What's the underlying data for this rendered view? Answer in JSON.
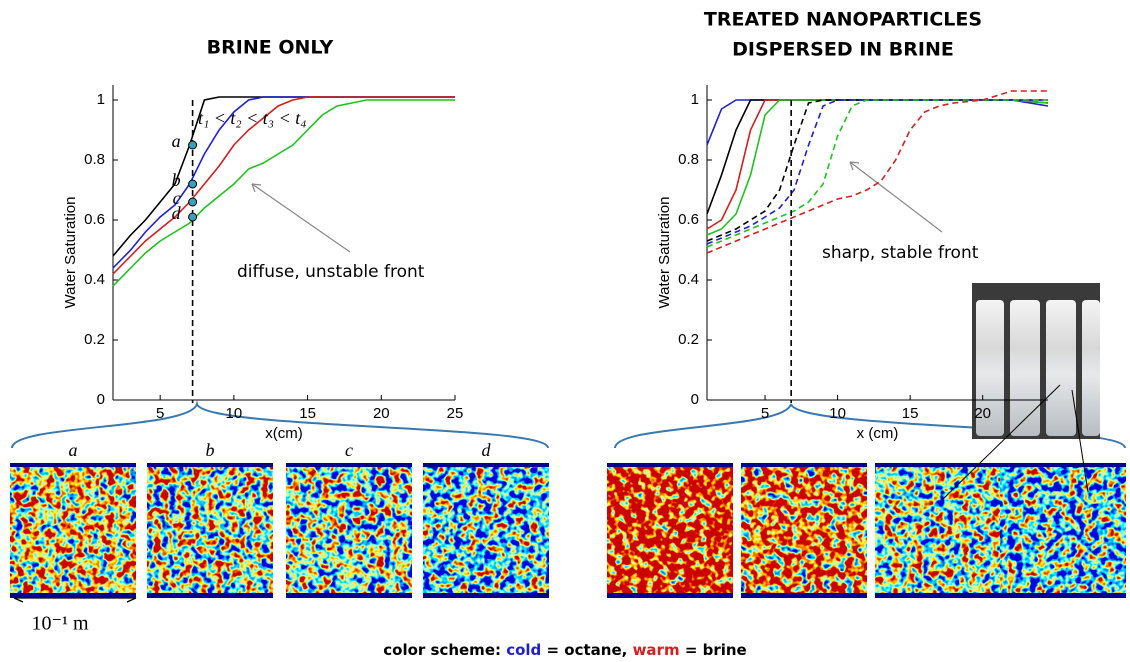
{
  "chart_data": [
    {
      "type": "line",
      "title": "BRINE ONLY",
      "ylabel": "Water Saturation",
      "xlabel": "x(cm)",
      "xlim": [
        1.8,
        25
      ],
      "ylim": [
        0,
        1.05
      ],
      "xticks": [
        5,
        10,
        15,
        20,
        25
      ],
      "yticks": [
        0,
        0.2,
        0.4,
        0.6,
        0.8,
        1
      ],
      "x": [
        1.8,
        3,
        4,
        5,
        6,
        7,
        8,
        9,
        10,
        11,
        12,
        13,
        14,
        15,
        16,
        17,
        18,
        19,
        20,
        22,
        25
      ],
      "series": [
        {
          "color": "#000000",
          "dash": false,
          "values": [
            0.48,
            0.55,
            0.6,
            0.66,
            0.72,
            0.85,
            1.0,
            1.01,
            1.01,
            1.01,
            1.01,
            1.01,
            1.01,
            1.01,
            1.01,
            1.01,
            1.01,
            1.01,
            1.01,
            1.01,
            1.01
          ]
        },
        {
          "color": "#1f1fd0",
          "dash": false,
          "values": [
            0.44,
            0.5,
            0.56,
            0.61,
            0.65,
            0.72,
            0.82,
            0.9,
            0.96,
            1.0,
            1.01,
            1.01,
            1.01,
            1.01,
            1.01,
            1.01,
            1.01,
            1.01,
            1.01,
            1.01,
            1.01
          ]
        },
        {
          "color": "#d02020",
          "dash": false,
          "values": [
            0.42,
            0.48,
            0.53,
            0.57,
            0.61,
            0.66,
            0.72,
            0.78,
            0.85,
            0.9,
            0.94,
            0.98,
            1.0,
            1.01,
            1.01,
            1.01,
            1.01,
            1.01,
            1.01,
            1.01,
            1.01
          ]
        },
        {
          "color": "#20c020",
          "dash": false,
          "values": [
            0.38,
            0.44,
            0.49,
            0.53,
            0.56,
            0.59,
            0.64,
            0.68,
            0.72,
            0.77,
            0.79,
            0.82,
            0.85,
            0.9,
            0.95,
            0.98,
            0.99,
            1.0,
            1.0,
            1.0,
            1.0
          ]
        }
      ],
      "marker_x": 7.2,
      "points": {
        "labels": [
          "a",
          "b",
          "c",
          "d"
        ],
        "values": [
          0.85,
          0.72,
          0.66,
          0.61
        ]
      },
      "annotations": [
        "t₁ < t₂ < t₃ < t₄",
        "diffuse, unstable front"
      ],
      "image_labels": [
        "a",
        "b",
        "c",
        "d"
      ],
      "scale_label": "10⁻¹ m"
    },
    {
      "type": "line",
      "title": [
        "TREATED  NANOPARTICLES",
        "DISPERSED IN BRINE"
      ],
      "ylabel": "Water Saturation",
      "xlabel": "x (cm)",
      "xlim": [
        1,
        24.5
      ],
      "ylim": [
        0,
        1.05
      ],
      "xticks": [
        5,
        10,
        15,
        20
      ],
      "yticks": [
        0,
        0.2,
        0.4,
        0.6,
        0.8,
        1
      ],
      "x": [
        1,
        2,
        3,
        4,
        5,
        6,
        7,
        8,
        9,
        10,
        11,
        12,
        13,
        14,
        15,
        16,
        17,
        18,
        20,
        22,
        24.5
      ],
      "series": [
        {
          "color": "#1f1fd0",
          "dash": false,
          "values": [
            0.85,
            0.97,
            1.0,
            1.0,
            1.0,
            1.0,
            1.0,
            1.0,
            1.0,
            1.0,
            1.0,
            1.0,
            1.0,
            1.0,
            1.0,
            1.0,
            1.0,
            1.0,
            1.0,
            1.0,
            0.98
          ]
        },
        {
          "color": "#000000",
          "dash": false,
          "values": [
            0.62,
            0.75,
            0.9,
            1.0,
            1.0,
            1.0,
            1.0,
            1.0,
            1.0,
            1.0,
            1.0,
            1.0,
            1.0,
            1.0,
            1.0,
            1.0,
            1.0,
            1.0,
            1.0,
            1.0,
            0.99
          ]
        },
        {
          "color": "#d02020",
          "dash": false,
          "values": [
            0.57,
            0.6,
            0.7,
            0.9,
            1.0,
            1.0,
            1.0,
            1.0,
            1.0,
            1.0,
            1.0,
            1.0,
            1.0,
            1.0,
            1.0,
            1.0,
            1.0,
            1.0,
            1.0,
            1.0,
            0.99
          ]
        },
        {
          "color": "#20c020",
          "dash": false,
          "values": [
            0.55,
            0.57,
            0.62,
            0.75,
            0.95,
            1.0,
            1.0,
            1.0,
            1.0,
            1.0,
            1.0,
            1.0,
            1.0,
            1.0,
            1.0,
            1.0,
            1.0,
            1.0,
            1.0,
            1.0,
            0.99
          ]
        },
        {
          "color": "#000000",
          "dash": true,
          "values": [
            0.53,
            0.55,
            0.57,
            0.6,
            0.63,
            0.7,
            0.85,
            0.99,
            1.0,
            1.0,
            1.0,
            1.0,
            1.0,
            1.0,
            1.0,
            1.0,
            1.0,
            1.0,
            1.0,
            1.0,
            1.0
          ]
        },
        {
          "color": "#1f1fd0",
          "dash": true,
          "values": [
            0.52,
            0.54,
            0.56,
            0.58,
            0.61,
            0.64,
            0.7,
            0.85,
            0.98,
            1.0,
            1.0,
            1.0,
            1.0,
            1.0,
            1.0,
            1.0,
            1.0,
            1.0,
            1.0,
            1.0,
            1.0
          ]
        },
        {
          "color": "#20c020",
          "dash": true,
          "values": [
            0.51,
            0.53,
            0.55,
            0.57,
            0.59,
            0.61,
            0.63,
            0.66,
            0.72,
            0.88,
            0.98,
            1.0,
            1.0,
            1.0,
            1.0,
            1.0,
            1.0,
            1.0,
            1.0,
            1.0,
            1.0
          ]
        },
        {
          "color": "#d02020",
          "dash": true,
          "values": [
            0.49,
            0.51,
            0.53,
            0.55,
            0.57,
            0.59,
            0.61,
            0.63,
            0.65,
            0.67,
            0.68,
            0.7,
            0.73,
            0.8,
            0.9,
            0.96,
            0.98,
            0.99,
            1.0,
            1.03,
            1.03
          ]
        }
      ],
      "marker_x": 6.8,
      "annotations": [
        "sharp, stable front"
      ]
    }
  ],
  "footer": {
    "parts": [
      "color scheme: ",
      "cold",
      " = octane, ",
      "warm",
      " = brine"
    ],
    "colors": [
      "#000000",
      "#1f1fd0",
      "#000000",
      "#d02020",
      "#000000"
    ]
  }
}
